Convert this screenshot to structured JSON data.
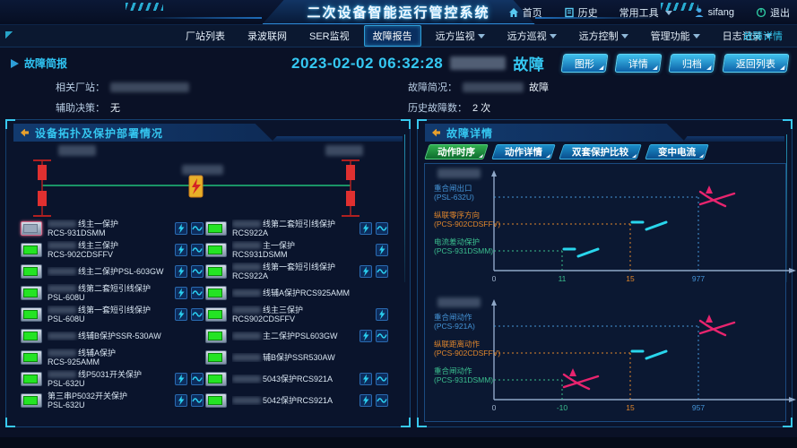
{
  "header": {
    "title": "二次设备智能运行管控系统",
    "menu": [
      {
        "icon": "home-icon",
        "label": "首页"
      },
      {
        "icon": "history-icon",
        "label": "历史"
      },
      {
        "icon": "chevron-down-icon",
        "label": "常用工具"
      },
      {
        "icon": "user-icon",
        "label": "sifang"
      },
      {
        "icon": "logout-icon",
        "label": "退出"
      }
    ]
  },
  "navbar": {
    "items": [
      {
        "label": "厂站列表",
        "dropdown": false
      },
      {
        "label": "录波联网",
        "dropdown": false
      },
      {
        "label": "SER监视",
        "dropdown": false
      },
      {
        "label": "故障报告",
        "dropdown": false
      },
      {
        "label": "远方监视",
        "dropdown": true
      },
      {
        "label": "远方巡视",
        "dropdown": true
      },
      {
        "label": "远方控制",
        "dropdown": true
      },
      {
        "label": "管理功能",
        "dropdown": true
      },
      {
        "label": "日志记录",
        "dropdown": true
      }
    ],
    "active": "故障报告",
    "right_link": "故障详情"
  },
  "brief": {
    "section_title": "故障简报",
    "datetime": "2023-02-02 06:32:28",
    "fault_suffix": "故障",
    "related_label": "相关厂站：",
    "related_value_masked": true,
    "aux_label": "辅助决策：",
    "aux_value": "无",
    "summary_label": "故障简况：",
    "summary_value_masked": true,
    "summary_suffix": "故障",
    "history_label": "历史故障数：",
    "history_value": "2 次",
    "buttons": [
      "图形",
      "详情",
      "归档",
      "返回列表"
    ]
  },
  "left_panel": {
    "title": "设备拓扑及保护部署情况",
    "topology": {
      "station_left_masked": true,
      "station_right_masked": true,
      "center_label_masked": true,
      "fault_marker": "lightning"
    },
    "columns": [
      [
        {
          "masked_prefix": true,
          "name": "线主一保护",
          "model": "RCS-931DSMM",
          "actions": [
            "event",
            "wave"
          ],
          "selected": true
        },
        {
          "masked_prefix": true,
          "name": "线主三保护",
          "model": "RCS-902CDSFFV",
          "actions": [
            "event",
            "wave"
          ],
          "selected": false
        },
        {
          "masked_prefix": true,
          "name": "线主二保护PSL-603GW",
          "model": "",
          "actions": [
            "event",
            "wave"
          ],
          "selected": false
        },
        {
          "masked_prefix": true,
          "name": "线第二套短引线保护",
          "model": "PSL-608U",
          "actions": [
            "event",
            "wave"
          ],
          "selected": false
        },
        {
          "masked_prefix": true,
          "name": "线第一套短引线保护",
          "model": "PSL-608U",
          "actions": [
            "event",
            "wave"
          ],
          "selected": false
        },
        {
          "masked_prefix": true,
          "name": "线辅B保护SSR-530AW",
          "model": "",
          "actions": [],
          "selected": false
        },
        {
          "masked_prefix": true,
          "name": "线辅A保护",
          "model": "RCS-925AMM",
          "actions": [],
          "selected": false
        },
        {
          "masked_prefix": true,
          "name": "线P5031开关保护",
          "model": "PSL-632U",
          "actions": [
            "event",
            "wave"
          ],
          "selected": false
        },
        {
          "masked_prefix": false,
          "name": "第三串P5032开关保护",
          "model": "PSL-632U",
          "actions": [
            "event",
            "wave"
          ],
          "selected": false
        }
      ],
      [
        {
          "masked_prefix": true,
          "name": "线第二套短引线保护",
          "model": "RCS922A",
          "actions": [
            "event",
            "wave"
          ],
          "selected": false
        },
        {
          "masked_prefix": true,
          "name": "主一保护",
          "model": "RCS931DSMM",
          "actions": [
            "event"
          ],
          "selected": false
        },
        {
          "masked_prefix": true,
          "name": "线第一套短引线保护",
          "model": "RCS922A",
          "actions": [
            "event",
            "wave"
          ],
          "selected": false
        },
        {
          "masked_prefix": true,
          "name": "线辅A保护RCS925AMM",
          "model": "",
          "actions": [],
          "selected": false
        },
        {
          "masked_prefix": true,
          "name": "线主三保护",
          "model": "RCS902CDSFFV",
          "actions": [
            "event"
          ],
          "selected": false
        },
        {
          "masked_prefix": true,
          "name": "主二保护PSL603GW",
          "model": "",
          "actions": [
            "event",
            "wave"
          ],
          "selected": false
        },
        {
          "masked_prefix": true,
          "name": "辅B保护SSR530AW",
          "model": "",
          "actions": [],
          "selected": false
        },
        {
          "masked_prefix": true,
          "name": "5043保护RCS921A",
          "model": "",
          "actions": [
            "event",
            "wave"
          ],
          "selected": false
        },
        {
          "masked_prefix": true,
          "name": "5042保护RCS921A",
          "model": "",
          "actions": [
            "event",
            "wave"
          ],
          "selected": false
        }
      ]
    ]
  },
  "right_panel": {
    "title": "故障详情",
    "tabs": [
      "动作时序",
      "动作详情",
      "双套保护比较",
      "变中电流"
    ],
    "active_tab": "动作时序"
  },
  "chart_data": [
    {
      "type": "scatter",
      "subtype": "event-timeline",
      "station_label_masked": true,
      "x_ticks": [
        "0",
        "11",
        "15",
        "977"
      ],
      "series": [
        {
          "label": "重合闸出口",
          "device": "(PSL-632U)",
          "time": 977,
          "marker": "reclose",
          "color": "#4493d6"
        },
        {
          "label": "纵联零序方向",
          "device": "(PCS-902CDSFFV)",
          "time": 15,
          "marker": "trip",
          "color": "#e0862c"
        },
        {
          "label": "电流差动保护",
          "device": "(PCS-931DSMM)",
          "time": 11,
          "marker": "trip",
          "color": "#3bbf8f"
        }
      ]
    },
    {
      "type": "scatter",
      "subtype": "event-timeline",
      "station_label_masked": true,
      "x_ticks": [
        "0",
        "-10",
        "15",
        "957"
      ],
      "series": [
        {
          "label": "重合闸动作",
          "device": "(PCS-921A)",
          "time": 957,
          "marker": "reclose",
          "color": "#4493d6"
        },
        {
          "label": "纵联距离动作",
          "device": "(PCS-902CDSFFV)",
          "time": 15,
          "marker": "trip",
          "color": "#e0862c"
        },
        {
          "label": "重合闸动作",
          "device": "(PCS-931DSMM)",
          "time": -10,
          "marker": "reclose",
          "color": "#3bbf8f"
        }
      ]
    }
  ],
  "colors": {
    "accent_cyan": "#2ec7ee",
    "title_cyan": "#35c8f2",
    "tab_active_green": "#2fae4e",
    "button_blue": "#1b8fd0",
    "device_ok_green": "#24e424",
    "bus_red": "#e03030",
    "line_green": "#1fbf7a",
    "fault_marker_orange": "#e8b028",
    "trip_mark_cyan": "#29d6ec",
    "reclose_mark_pink": "#e8246e",
    "axis_gray": "#90a8c8"
  }
}
